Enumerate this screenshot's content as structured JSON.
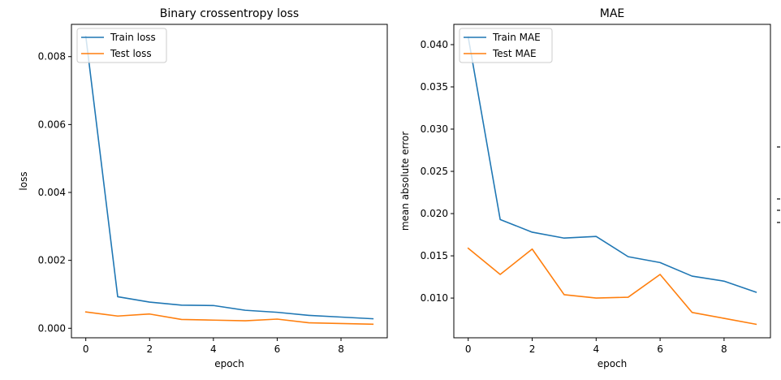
{
  "chart_data": [
    {
      "type": "line",
      "title": "Binary crossentropy loss",
      "xlabel": "epoch",
      "ylabel": "loss",
      "x": [
        0,
        1,
        2,
        3,
        4,
        5,
        6,
        7,
        8,
        9
      ],
      "xlim": [
        -0.45,
        9.45
      ],
      "ylim": [
        -0.00028,
        0.00895
      ],
      "xticks": [
        0,
        2,
        4,
        6,
        8
      ],
      "xtick_labels": [
        "0",
        "2",
        "4",
        "6",
        "8"
      ],
      "yticks": [
        0,
        0.002,
        0.004,
        0.006,
        0.008
      ],
      "ytick_labels": [
        "0.000",
        "0.002",
        "0.004",
        "0.006",
        "0.008"
      ],
      "grid": false,
      "legend_position": "top-left",
      "series": [
        {
          "name": "Train loss",
          "color": "#1f77b4",
          "values": [
            0.0086,
            0.00093,
            0.00077,
            0.00068,
            0.00067,
            0.00053,
            0.00047,
            0.00038,
            0.00033,
            0.00028
          ]
        },
        {
          "name": "Test loss",
          "color": "#ff7f0e",
          "values": [
            0.00048,
            0.00036,
            0.00042,
            0.00026,
            0.00024,
            0.00022,
            0.00027,
            0.00016,
            0.00014,
            0.00012
          ]
        }
      ]
    },
    {
      "type": "line",
      "title": "MAE",
      "xlabel": "epoch",
      "ylabel": "mean absolute error",
      "x": [
        0,
        1,
        2,
        3,
        4,
        5,
        6,
        7,
        8,
        9
      ],
      "xlim": [
        -0.45,
        9.45
      ],
      "ylim": [
        0.0053,
        0.0424
      ],
      "xticks": [
        0,
        2,
        4,
        6,
        8
      ],
      "xtick_labels": [
        "0",
        "2",
        "4",
        "6",
        "8"
      ],
      "yticks": [
        0.01,
        0.015,
        0.02,
        0.025,
        0.03,
        0.035,
        0.04
      ],
      "ytick_labels": [
        "0.010",
        "0.015",
        "0.020",
        "0.025",
        "0.030",
        "0.035",
        "0.040"
      ],
      "grid": false,
      "legend_position": "top-left",
      "series": [
        {
          "name": "Train MAE",
          "color": "#1f77b4",
          "values": [
            0.0409,
            0.0193,
            0.0178,
            0.0171,
            0.0173,
            0.0149,
            0.0142,
            0.0126,
            0.012,
            0.0107
          ]
        },
        {
          "name": "Test MAE",
          "color": "#ff7f0e",
          "values": [
            0.0159,
            0.0128,
            0.0158,
            0.0104,
            0.01,
            0.0101,
            0.0128,
            0.0083,
            0.0076,
            0.0069
          ]
        }
      ]
    }
  ]
}
